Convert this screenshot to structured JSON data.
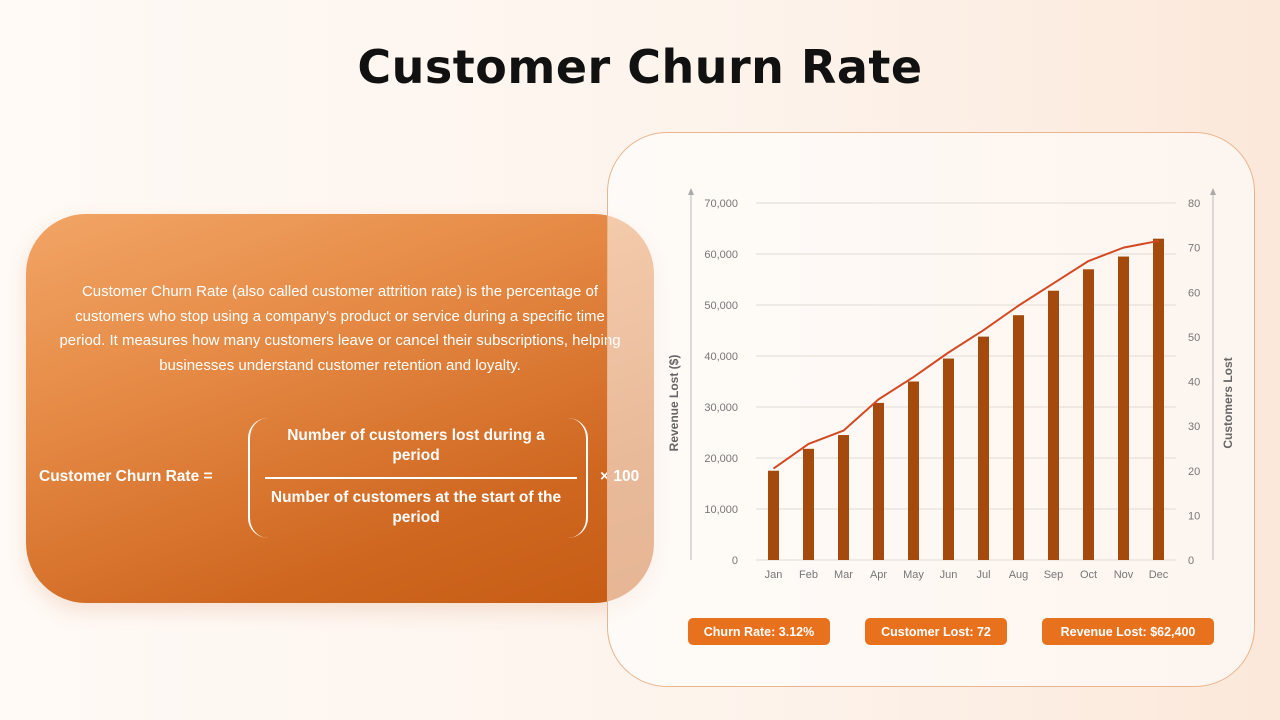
{
  "title": "Customer Churn Rate",
  "description": "Customer Churn Rate (also called customer attrition rate) is the percentage of customers who stop using a company's product or service during a specific time period. It measures how many customers leave or cancel their subscriptions, helping businesses understand customer retention and loyalty.",
  "formula": {
    "label": "Customer Churn Rate =",
    "numerator": "Number of customers lost during a period",
    "denominator": "Number of customers at the start of the period",
    "multiplier": "× 100"
  },
  "stats": {
    "churn_rate": "Churn Rate: 3.12%",
    "customers_lost": "Customer Lost: 72",
    "revenue_lost": "Revenue Lost: $62,400"
  },
  "colors": {
    "bar": "#a34a0c",
    "line": "#d24a24",
    "accent": "#e8711e",
    "grid": "#e2dbd5",
    "tick_text": "#777777"
  },
  "chart_data": {
    "type": "bar",
    "categories": [
      "Jan",
      "Feb",
      "Mar",
      "Apr",
      "May",
      "Jun",
      "Jul",
      "Aug",
      "Sep",
      "Oct",
      "Nov",
      "Dec"
    ],
    "series": [
      {
        "name": "Revenue Lost ($)",
        "type": "bar",
        "axis": "left",
        "values": [
          17500,
          21800,
          24500,
          30800,
          35000,
          39500,
          43800,
          48000,
          52800,
          57000,
          59500,
          63000
        ]
      },
      {
        "name": "Customers Lost",
        "type": "line",
        "axis": "right",
        "values": [
          20.5,
          26,
          29,
          36,
          41,
          46.5,
          51.5,
          57,
          62,
          67,
          70,
          71.5
        ]
      }
    ],
    "ylabel": "Revenue Lost ($)",
    "y2label": "Customers Lost",
    "ylim": [
      0,
      70000
    ],
    "y2lim": [
      0,
      80
    ],
    "yticks": [
      "0",
      "10,000",
      "20,000",
      "30,000",
      "40,000",
      "50,000",
      "60,000",
      "70,000"
    ],
    "y2ticks": [
      "0",
      "10",
      "20",
      "30",
      "40",
      "50",
      "60",
      "70",
      "80"
    ],
    "grid": true
  }
}
